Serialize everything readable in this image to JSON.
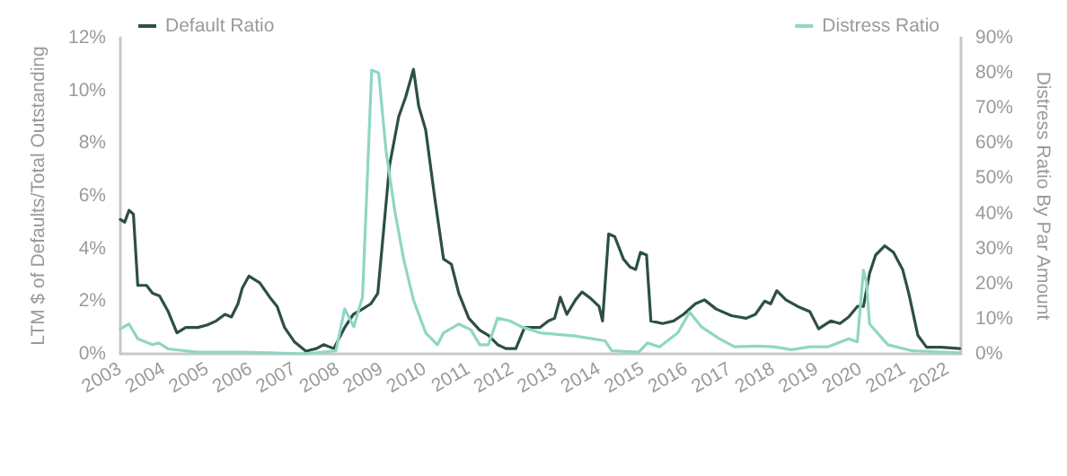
{
  "chart_data": {
    "type": "line",
    "ylabel": "LTM $ of Defaults/Total Outstanding",
    "y2label": "Distress Ratio By Par Amount",
    "xlim": [
      2003,
      2022.3
    ],
    "xticks": [
      2003,
      2004,
      2005,
      2006,
      2007,
      2008,
      2009,
      2010,
      2011,
      2012,
      2013,
      2014,
      2015,
      2016,
      2017,
      2018,
      2019,
      2020,
      2021,
      2022
    ],
    "ylim": [
      0,
      12
    ],
    "yticks": [
      {
        "value": 0,
        "label": "0%"
      },
      {
        "value": 2,
        "label": "2%"
      },
      {
        "value": 4,
        "label": "4%"
      },
      {
        "value": 6,
        "label": "6%"
      },
      {
        "value": 8,
        "label": "8%"
      },
      {
        "value": 10,
        "label": "10%"
      },
      {
        "value": 12,
        "label": "12%"
      }
    ],
    "y2lim": [
      0,
      90
    ],
    "y2ticks": [
      {
        "value": 0,
        "label": "0%"
      },
      {
        "value": 10,
        "label": "10%"
      },
      {
        "value": 20,
        "label": "20%"
      },
      {
        "value": 30,
        "label": "30%"
      },
      {
        "value": 40,
        "label": "40%"
      },
      {
        "value": 50,
        "label": "50%"
      },
      {
        "value": 60,
        "label": "60%"
      },
      {
        "value": 70,
        "label": "70%"
      },
      {
        "value": 80,
        "label": "80%"
      },
      {
        "value": 90,
        "label": "90%"
      }
    ],
    "legend": "top",
    "grid": false,
    "marker": "none",
    "line_style": "solid",
    "series": [
      {
        "name": "Default Ratio",
        "color": "#2d4f45",
        "x": [
          2003.0,
          2003.1,
          2003.2,
          2003.3,
          2003.4,
          2003.6,
          2003.74,
          2003.9,
          2004.1,
          2004.3,
          2004.5,
          2004.78,
          2005.0,
          2005.2,
          2005.4,
          2005.55,
          2005.7,
          2005.8,
          2005.95,
          2006.2,
          2006.43,
          2006.6,
          2006.77,
          2007.0,
          2007.26,
          2007.5,
          2007.67,
          2007.9,
          2008.15,
          2008.35,
          2008.56,
          2008.75,
          2008.91,
          2009.05,
          2009.18,
          2009.39,
          2009.55,
          2009.73,
          2009.85,
          2010.01,
          2010.22,
          2010.42,
          2010.6,
          2010.77,
          2011.0,
          2011.25,
          2011.45,
          2011.66,
          2011.85,
          2012.08,
          2012.28,
          2012.63,
          2012.83,
          2012.97,
          2013.1,
          2013.25,
          2013.45,
          2013.6,
          2013.8,
          2013.99,
          2014.07,
          2014.21,
          2014.35,
          2014.55,
          2014.7,
          2014.83,
          2014.94,
          2015.08,
          2015.18,
          2015.45,
          2015.7,
          2015.93,
          2016.2,
          2016.41,
          2016.68,
          2017.03,
          2017.37,
          2017.58,
          2017.79,
          2017.93,
          2018.07,
          2018.28,
          2018.55,
          2018.83,
          2019.03,
          2019.31,
          2019.52,
          2019.72,
          2019.92,
          2020.06,
          2020.2,
          2020.34,
          2020.55,
          2020.75,
          2020.96,
          2021.1,
          2021.31,
          2021.51,
          2021.85,
          2022.27
        ],
        "values": [
          5.1,
          5.0,
          5.45,
          5.3,
          2.6,
          2.6,
          2.3,
          2.2,
          1.6,
          0.8,
          1.0,
          1.0,
          1.1,
          1.25,
          1.5,
          1.4,
          1.9,
          2.5,
          2.95,
          2.7,
          2.15,
          1.8,
          1.0,
          0.45,
          0.1,
          0.2,
          0.35,
          0.2,
          1.0,
          1.5,
          1.7,
          1.9,
          2.3,
          4.8,
          7.15,
          9.0,
          9.75,
          10.8,
          9.4,
          8.5,
          5.9,
          3.6,
          3.4,
          2.3,
          1.35,
          0.9,
          0.7,
          0.35,
          0.2,
          0.2,
          1.0,
          1.0,
          1.25,
          1.35,
          2.15,
          1.5,
          2.05,
          2.35,
          2.1,
          1.8,
          1.25,
          4.55,
          4.45,
          3.6,
          3.3,
          3.2,
          3.85,
          3.75,
          1.25,
          1.15,
          1.25,
          1.5,
          1.9,
          2.05,
          1.7,
          1.45,
          1.35,
          1.5,
          2.0,
          1.9,
          2.4,
          2.05,
          1.8,
          1.6,
          0.95,
          1.25,
          1.15,
          1.4,
          1.8,
          1.8,
          3.05,
          3.75,
          4.1,
          3.85,
          3.2,
          2.3,
          0.7,
          0.25,
          0.25,
          0.2
        ]
      },
      {
        "name": "Distress Ratio",
        "color": "#8fd6c6",
        "axis": "y2",
        "x": [
          2003.0,
          2003.2,
          2003.4,
          2003.74,
          2003.88,
          2004.1,
          2004.78,
          2005.75,
          2006.43,
          2007.26,
          2007.95,
          2008.15,
          2008.36,
          2008.56,
          2008.77,
          2008.93,
          2009.1,
          2009.3,
          2009.5,
          2009.73,
          2010.01,
          2010.28,
          2010.42,
          2010.77,
          2011.05,
          2011.25,
          2011.45,
          2011.66,
          2011.94,
          2012.21,
          2012.63,
          2013.45,
          2014.13,
          2014.28,
          2014.9,
          2015.1,
          2015.38,
          2015.8,
          2016.07,
          2016.34,
          2016.75,
          2017.1,
          2017.58,
          2018.0,
          2018.41,
          2018.83,
          2019.24,
          2019.72,
          2019.92,
          2020.06,
          2020.13,
          2020.2,
          2020.62,
          2021.17,
          2022.27
        ],
        "values": [
          7.1,
          8.5,
          4.3,
          2.6,
          3.1,
          1.4,
          0.5,
          0.5,
          0.3,
          0,
          0.9,
          12.8,
          7.7,
          16.2,
          80.8,
          80,
          57.8,
          40.8,
          27.2,
          15.3,
          6.0,
          2.6,
          6.0,
          8.5,
          6.8,
          2.6,
          2.6,
          10.2,
          9.4,
          7.7,
          6.0,
          5.1,
          3.7,
          0.9,
          0.5,
          3.1,
          2.0,
          6.0,
          11.9,
          7.7,
          4.3,
          2.0,
          2.2,
          2.0,
          1.2,
          2.0,
          2.0,
          4.3,
          3.4,
          23.8,
          20.4,
          8.5,
          2.6,
          0.9,
          0.3
        ]
      }
    ]
  }
}
